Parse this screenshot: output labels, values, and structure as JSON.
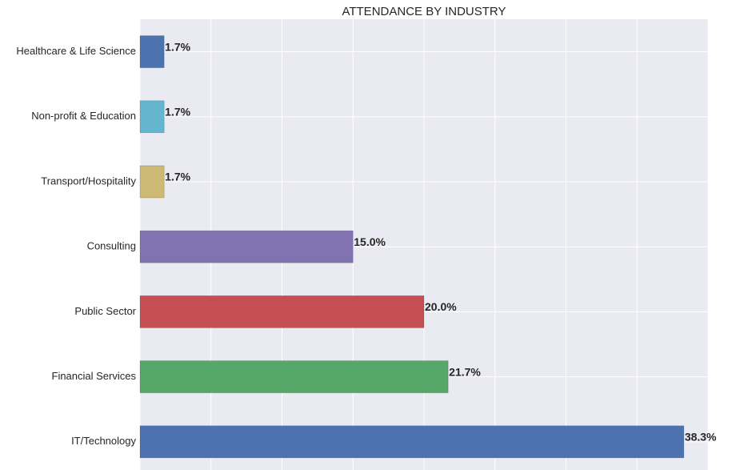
{
  "chart_data": {
    "type": "barh",
    "title": "ATTENDANCE BY INDUSTRY",
    "categories": [
      "Healthcare & Life Science",
      "Non-profit & Education",
      "Transport/Hospitality",
      "Consulting",
      "Public Sector",
      "Financial Services",
      "IT/Technology"
    ],
    "values": [
      1.7,
      1.7,
      1.7,
      15.0,
      20.0,
      21.7,
      38.3
    ],
    "value_labels": [
      "1.7%",
      "1.7%",
      "1.7%",
      "15.0%",
      "20.0%",
      "21.7%",
      "38.3%"
    ],
    "colors": [
      "#4c72b0",
      "#64b5cd",
      "#ccb974",
      "#8172b2",
      "#c44e52",
      "#55a868",
      "#4c72b0"
    ],
    "xlim": [
      0,
      40
    ],
    "xticks": [
      0,
      5,
      10,
      15,
      20,
      25,
      30,
      35,
      40
    ],
    "grid": true
  }
}
